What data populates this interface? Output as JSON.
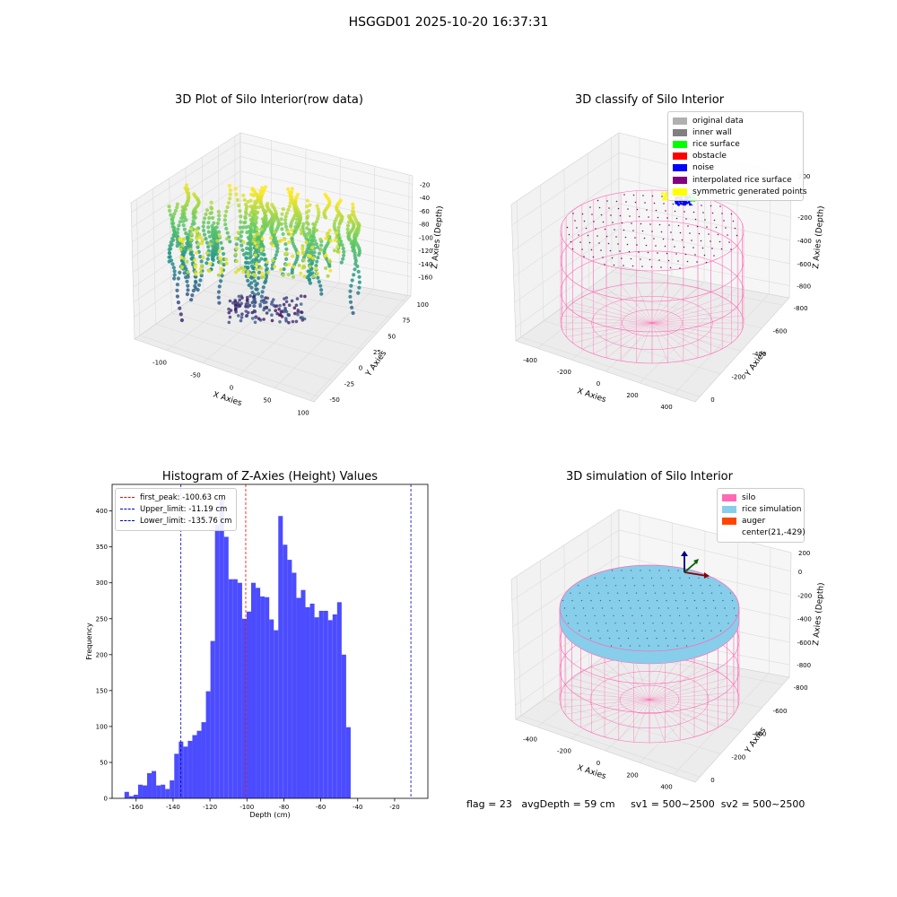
{
  "figure_title": "HSGGD01 2025-10-20 16:37:31",
  "footer": {
    "flag": "flag = 23",
    "avg_depth": "avgDepth = 59 cm",
    "sv1": "sv1 = 500~2500",
    "sv2": "sv2 = 500~2500"
  },
  "colors": {
    "histogram_bar": "#4c4cff",
    "first_peak": "#ff0000",
    "limits": "#0000bb",
    "silo": "#ff69b4",
    "rice_simulation": "#87ceeb",
    "auger": "#ff4500"
  },
  "chart_data": [
    {
      "type": "scatter",
      "projection": "3d",
      "title": "3D Plot of Silo Interior(row data)",
      "xlabel": "X Axies",
      "ylabel": "Y Axies",
      "zlabel": "Z Axies (Depth)",
      "xticks": [
        "-100",
        "-50",
        "0",
        "50",
        "100"
      ],
      "yticks": [
        "-50",
        "-25",
        "0",
        "25",
        "50",
        "75",
        "100"
      ],
      "zticks": [
        "-20",
        "-40",
        "-60",
        "-80",
        "-100",
        "-120",
        "-140",
        "-160"
      ],
      "colormap": "viridis"
    },
    {
      "type": "scatter",
      "projection": "3d",
      "title": "3D classify of Silo Interior",
      "xlabel": "X Axies",
      "ylabel": "Y Axies",
      "zlabel": "Z Axies (Depth)",
      "xticks": [
        "-400",
        "-200",
        "0",
        "200",
        "400"
      ],
      "yticks": [
        "0",
        "-200",
        "-400",
        "-600",
        "-800"
      ],
      "zticks": [
        "200",
        "0",
        "-200",
        "-400",
        "-600",
        "-800"
      ],
      "legend": [
        {
          "label": "original data",
          "color": "#b0b0b0"
        },
        {
          "label": "inner wall",
          "color": "#808080"
        },
        {
          "label": "rice surface",
          "color": "#00ff00"
        },
        {
          "label": "obstacle",
          "color": "#ff0000"
        },
        {
          "label": "noise",
          "color": "#0000ff"
        },
        {
          "label": "interpolated rice surface",
          "color": "#800080"
        },
        {
          "label": "symmetric generated points",
          "color": "#ffff00"
        }
      ]
    },
    {
      "type": "bar",
      "title": "Histogram of Z-Axies (Height) Values",
      "xlabel": "Depth (cm)",
      "ylabel": "Frequency",
      "xlim": [
        -173,
        -2
      ],
      "ylim": [
        0,
        437
      ],
      "xticks": [
        -160,
        -140,
        -120,
        -100,
        -80,
        -60,
        -40,
        -20
      ],
      "yticks": [
        0,
        50,
        100,
        150,
        200,
        250,
        300,
        350,
        400
      ],
      "bin_start": -166.3,
      "bin_width": 2.45,
      "values": [
        9,
        3,
        5,
        19,
        18,
        35,
        38,
        18,
        19,
        13,
        25,
        62,
        79,
        72,
        80,
        88,
        94,
        106,
        149,
        219,
        381,
        416,
        364,
        305,
        305,
        300,
        250,
        260,
        300,
        293,
        281,
        280,
        249,
        234,
        393,
        353,
        332,
        314,
        279,
        290,
        266,
        271,
        252,
        261,
        261,
        248,
        256,
        273,
        200,
        99
      ],
      "lines": [
        {
          "label": "first_peak: -100.63 cm",
          "x": -100.63,
          "color": "#ff0000"
        },
        {
          "label": "Upper_limit: -11.19 cm",
          "x": -11.19,
          "color": "#0000bb"
        },
        {
          "label": "Lower_limit: -135.76 cm",
          "x": -135.76,
          "color": "#0000bb"
        }
      ],
      "legend_position": "upper-left"
    },
    {
      "type": "surface",
      "projection": "3d",
      "title": "3D simulation of Silo Interior",
      "xlabel": "X Axies",
      "ylabel": "Y Axies",
      "zlabel": "Z Axies (Depth)",
      "xticks": [
        "-400",
        "-200",
        "0",
        "200",
        "400"
      ],
      "yticks": [
        "0",
        "-200",
        "-400",
        "-600",
        "-800"
      ],
      "zticks": [
        "200",
        "0",
        "-200",
        "-400",
        "-600",
        "-800"
      ],
      "legend": [
        {
          "label": "silo",
          "color": "#ff69b4"
        },
        {
          "label": "rice simulation",
          "color": "#87ceeb"
        },
        {
          "label": "auger",
          "color": "#ff4500"
        },
        {
          "label": "center(21,-429)",
          "color": ""
        }
      ]
    }
  ]
}
